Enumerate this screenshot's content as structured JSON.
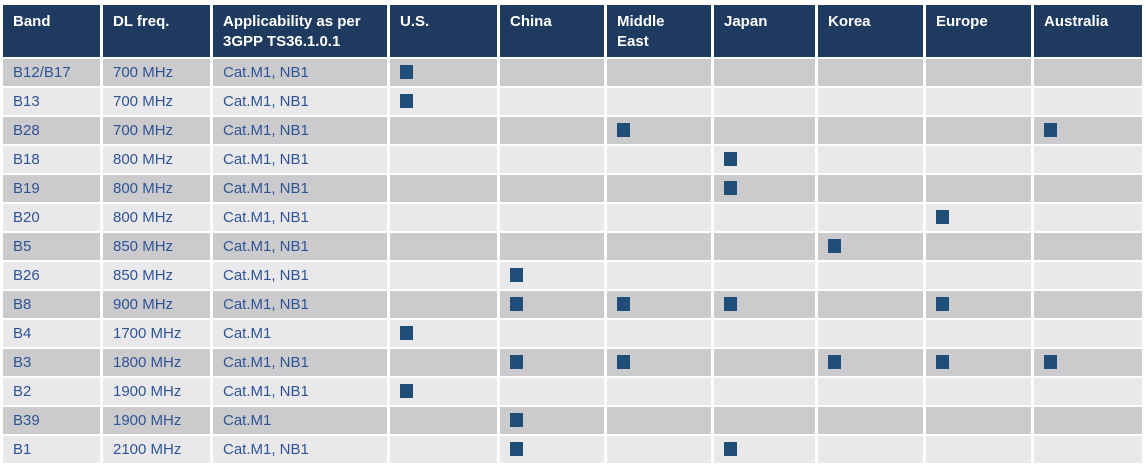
{
  "colors": {
    "header_bg": "#1e3a5f",
    "header_text": "#ffffff",
    "row_odd_bg": "#cbcbcd",
    "row_even_bg": "#e9e9eb",
    "body_text": "#2f5496",
    "marker": "#1f4e79",
    "page_bg": "#ffffff"
  },
  "marker": {
    "glyph": "filled-square",
    "meaning": "band applicable in region",
    "color": "#1f4e79"
  },
  "table": {
    "columns": [
      {
        "key": "band",
        "label": "Band",
        "type": "text"
      },
      {
        "key": "dl_freq",
        "label": "DL freq.",
        "type": "text"
      },
      {
        "key": "applicability",
        "label": "Applicability as per\n3GPP TS36.1.0.1",
        "type": "text"
      },
      {
        "key": "us",
        "label": "U.S.",
        "type": "region"
      },
      {
        "key": "china",
        "label": "China",
        "type": "region"
      },
      {
        "key": "middle_east",
        "label": "Middle\nEast",
        "type": "region"
      },
      {
        "key": "japan",
        "label": "Japan",
        "type": "region"
      },
      {
        "key": "korea",
        "label": "Korea",
        "type": "region"
      },
      {
        "key": "europe",
        "label": "Europe",
        "type": "region"
      },
      {
        "key": "australia",
        "label": "Australia",
        "type": "region"
      }
    ],
    "region_keys": [
      "us",
      "china",
      "middle_east",
      "japan",
      "korea",
      "europe",
      "australia"
    ],
    "rows": [
      {
        "band": "B12/B17",
        "dl_freq": "700 MHz",
        "applicability": "Cat.M1, NB1",
        "regions": [
          "us"
        ]
      },
      {
        "band": "B13",
        "dl_freq": "700 MHz",
        "applicability": "Cat.M1, NB1",
        "regions": [
          "us"
        ]
      },
      {
        "band": "B28",
        "dl_freq": "700 MHz",
        "applicability": "Cat.M1, NB1",
        "regions": [
          "middle_east",
          "australia"
        ]
      },
      {
        "band": "B18",
        "dl_freq": "800 MHz",
        "applicability": "Cat.M1, NB1",
        "regions": [
          "japan"
        ]
      },
      {
        "band": "B19",
        "dl_freq": "800 MHz",
        "applicability": "Cat.M1, NB1",
        "regions": [
          "japan"
        ]
      },
      {
        "band": "B20",
        "dl_freq": "800 MHz",
        "applicability": "Cat.M1, NB1",
        "regions": [
          "europe"
        ]
      },
      {
        "band": "B5",
        "dl_freq": "850 MHz",
        "applicability": "Cat.M1, NB1",
        "regions": [
          "korea"
        ]
      },
      {
        "band": "B26",
        "dl_freq": "850 MHz",
        "applicability": "Cat.M1, NB1",
        "regions": [
          "china"
        ]
      },
      {
        "band": "B8",
        "dl_freq": "900 MHz",
        "applicability": "Cat.M1, NB1",
        "regions": [
          "china",
          "middle_east",
          "japan",
          "europe"
        ]
      },
      {
        "band": "B4",
        "dl_freq": "1700 MHz",
        "applicability": "Cat.M1",
        "regions": [
          "us"
        ]
      },
      {
        "band": "B3",
        "dl_freq": "1800 MHz",
        "applicability": "Cat.M1, NB1",
        "regions": [
          "china",
          "middle_east",
          "korea",
          "europe",
          "australia"
        ]
      },
      {
        "band": "B2",
        "dl_freq": "1900 MHz",
        "applicability": "Cat.M1, NB1",
        "regions": [
          "us"
        ]
      },
      {
        "band": "B39",
        "dl_freq": "1900 MHz",
        "applicability": "Cat.M1",
        "regions": [
          "china"
        ]
      },
      {
        "band": "B1",
        "dl_freq": "2100 MHz",
        "applicability": "Cat.M1, NB1",
        "regions": [
          "china",
          "japan"
        ]
      }
    ]
  }
}
